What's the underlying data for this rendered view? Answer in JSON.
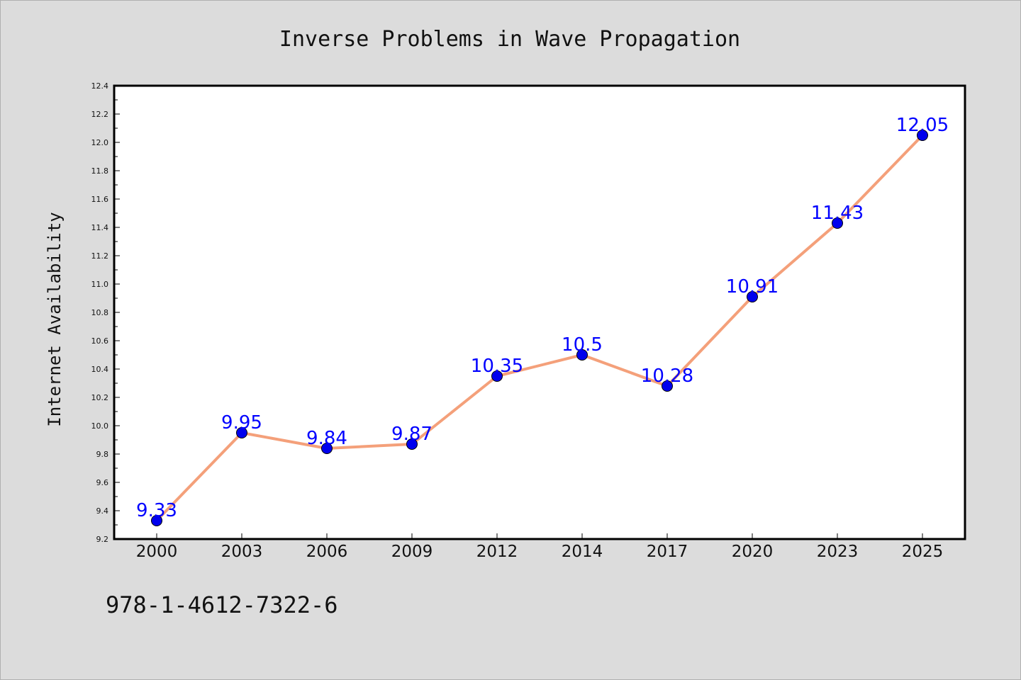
{
  "chart_data": {
    "type": "line",
    "title": "Inverse Problems in Wave Propagation",
    "xlabel": "",
    "ylabel": "Internet Availability",
    "categories": [
      "2000",
      "2003",
      "2006",
      "2009",
      "2012",
      "2014",
      "2017",
      "2020",
      "2023",
      "2025"
    ],
    "series": [
      {
        "values": [
          9.33,
          9.95,
          9.84,
          9.87,
          10.35,
          10.5,
          10.28,
          10.91,
          11.43,
          12.05
        ],
        "data_labels": [
          "9.33",
          "9.95",
          "9.84",
          "9.87",
          "10.35",
          "10.5",
          "10.28",
          "10.91",
          "11.43",
          "12.05"
        ],
        "line_color": "#f4a07a",
        "marker_color": "#0000ee"
      }
    ],
    "ylim": [
      9.2,
      12.4
    ],
    "yticks": [
      "9.2",
      "9.4",
      "9.6",
      "9.8",
      "10.0",
      "10.2",
      "10.4",
      "10.6",
      "10.8",
      "11.0",
      "11.2",
      "11.4",
      "11.6",
      "11.8",
      "12.0",
      "12.2",
      "12.4"
    ],
    "grid": false,
    "legend": "none",
    "label_color": "#0000ff"
  },
  "footer": {
    "isbn": "978-1-4612-7322-6"
  }
}
